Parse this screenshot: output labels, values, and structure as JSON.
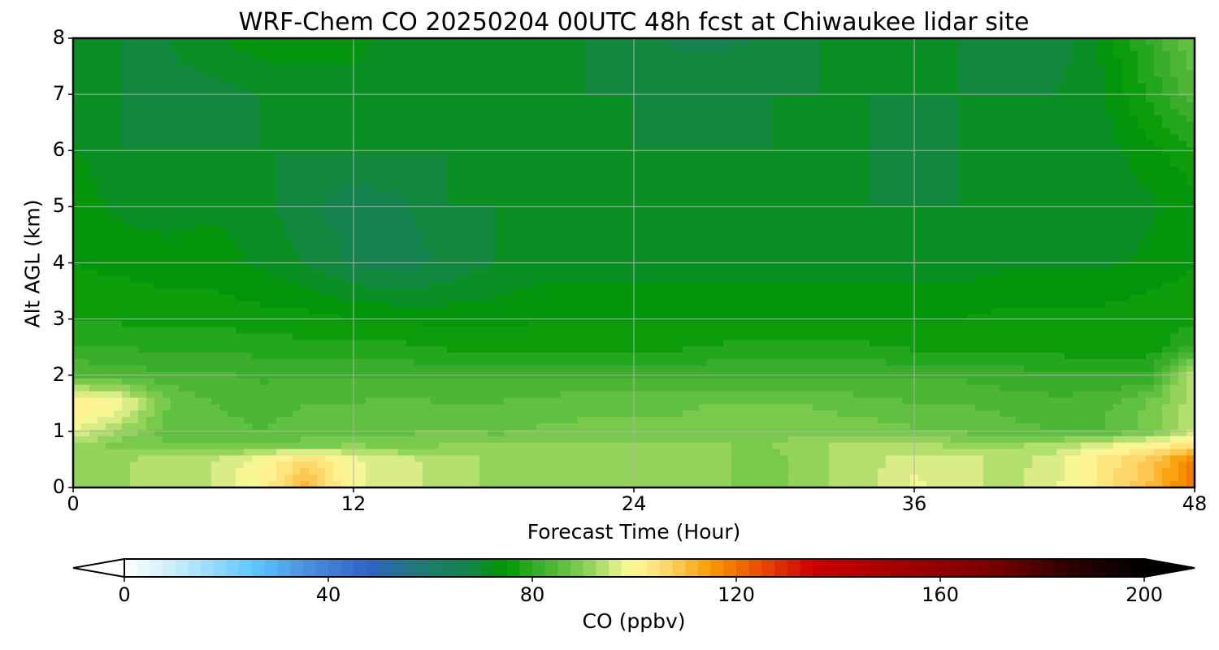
{
  "chart_data": {
    "type": "heatmap",
    "title": "WRF-Chem CO  20250204 00UTC 48h fcst at Chiwaukee lidar site",
    "xlabel": "Forecast Time (Hour)",
    "ylabel": "Alt AGL (km)",
    "xlim": [
      0,
      48
    ],
    "ylim": [
      0,
      8
    ],
    "xticks": [
      "0",
      "12",
      "24",
      "36",
      "48"
    ],
    "xtick_values": [
      0,
      12,
      24,
      36,
      48
    ],
    "yticks": [
      "0",
      "1",
      "2",
      "3",
      "4",
      "5",
      "6",
      "7",
      "8"
    ],
    "ytick_values": [
      0,
      1,
      2,
      3,
      4,
      5,
      6,
      7,
      8
    ],
    "grid": true,
    "x": [
      0,
      2,
      4,
      6,
      8,
      10,
      12,
      14,
      16,
      18,
      20,
      22,
      24,
      26,
      28,
      30,
      32,
      34,
      36,
      38,
      40,
      42,
      44,
      46,
      48
    ],
    "y": [
      0,
      0.5,
      0.75,
      1,
      1.5,
      2,
      2.5,
      3,
      3.5,
      4,
      5,
      6,
      7,
      8
    ],
    "z": [
      [
        92,
        92,
        94,
        95,
        100,
        112,
        98,
        96,
        94,
        92,
        92,
        91,
        91,
        90,
        90,
        89,
        92,
        94,
        98,
        96,
        94,
        97,
        103,
        110,
        120
      ],
      [
        92,
        92,
        94,
        95,
        99,
        106,
        98,
        96,
        94,
        92,
        92,
        91,
        91,
        90,
        90,
        89,
        92,
        94,
        97,
        96,
        94,
        96,
        103,
        108,
        118
      ],
      [
        92,
        89,
        88,
        88,
        88,
        89,
        90,
        89,
        90,
        90,
        90,
        90,
        90,
        90,
        90,
        90,
        92,
        95,
        93,
        92,
        92,
        93,
        96,
        100,
        105
      ],
      [
        98,
        92,
        86,
        86,
        85,
        86,
        87,
        87,
        88,
        87,
        88,
        88,
        88,
        88,
        89,
        89,
        89,
        89,
        88,
        87,
        86,
        85,
        85,
        88,
        95
      ],
      [
        103,
        100,
        88,
        85,
        84,
        85,
        85,
        86,
        85,
        85,
        86,
        87,
        87,
        87,
        88,
        88,
        87,
        86,
        85,
        85,
        84,
        83,
        84,
        88,
        94
      ],
      [
        85,
        84,
        83,
        83,
        82,
        82,
        82,
        82,
        82,
        82,
        82,
        82,
        82,
        82,
        82,
        82,
        82,
        82,
        82,
        82,
        81,
        81,
        80,
        80,
        96
      ],
      [
        80,
        80,
        79,
        79,
        79,
        78,
        78,
        78,
        77,
        77,
        76,
        77,
        77,
        77,
        78,
        78,
        78,
        78,
        77,
        77,
        77,
        76,
        76,
        76,
        80
      ],
      [
        77,
        77,
        77,
        77,
        76,
        76,
        75,
        75,
        74,
        74,
        75,
        75,
        75,
        75,
        75,
        75,
        75,
        75,
        75,
        75,
        76,
        76,
        76,
        76,
        77
      ],
      [
        76,
        76,
        75,
        75,
        74,
        73,
        71,
        70,
        71,
        72,
        73,
        73,
        73,
        73,
        73,
        73,
        73,
        73,
        73,
        73,
        74,
        74,
        74,
        75,
        76
      ],
      [
        75,
        74,
        74,
        74,
        72,
        70,
        67,
        66,
        68,
        70,
        71,
        71,
        71,
        71,
        71,
        71,
        71,
        71,
        71,
        71,
        72,
        72,
        72,
        73,
        75
      ],
      [
        74,
        72,
        71,
        72,
        71,
        68,
        66,
        67,
        70,
        70,
        70,
        70,
        70,
        70,
        70,
        70,
        70,
        70,
        70,
        70,
        70,
        70,
        70,
        72,
        74
      ],
      [
        73,
        70,
        70,
        70,
        70,
        70,
        70,
        70,
        70,
        70,
        70,
        70,
        70,
        70,
        70,
        70,
        70,
        70,
        69,
        70,
        70,
        70,
        71,
        74,
        77
      ],
      [
        70,
        70,
        69,
        69,
        70,
        71,
        72,
        71,
        70,
        70,
        70,
        70,
        70,
        69,
        69,
        70,
        70,
        70,
        70,
        70,
        70,
        70,
        72,
        78,
        84
      ],
      [
        72,
        70,
        70,
        72,
        74,
        74,
        73,
        72,
        71,
        70,
        70,
        70,
        68,
        67,
        67,
        68,
        70,
        70,
        70,
        70,
        68,
        68,
        73,
        80,
        88
      ]
    ],
    "z_units": "ppbv",
    "colorbar": {
      "label": "CO  (ppbv)",
      "min": 0,
      "max": 200,
      "step": 2.5,
      "extend": "both",
      "ticks": [
        "0",
        "40",
        "80",
        "120",
        "160",
        "200"
      ],
      "tick_values": [
        0,
        40,
        80,
        120,
        160,
        200
      ],
      "cmap_anchors": [
        [
          0,
          "#ffffff"
        ],
        [
          10,
          "#c8ecfc"
        ],
        [
          25,
          "#5fc8ff"
        ],
        [
          35,
          "#4c94e0"
        ],
        [
          47.5,
          "#3062c8"
        ],
        [
          57.5,
          "#1f7a78"
        ],
        [
          67.5,
          "#14844a"
        ],
        [
          75,
          "#009900"
        ],
        [
          80,
          "#30aa26"
        ],
        [
          87.5,
          "#6ac444"
        ],
        [
          92.5,
          "#a0d864"
        ],
        [
          97.5,
          "#ecf290"
        ],
        [
          100,
          "#fff999"
        ],
        [
          107.5,
          "#fdd060"
        ],
        [
          115,
          "#f99a00"
        ],
        [
          125,
          "#e84a00"
        ],
        [
          135,
          "#cc0000"
        ],
        [
          150,
          "#a80000"
        ],
        [
          170,
          "#7a0000"
        ],
        [
          185,
          "#300000"
        ],
        [
          200,
          "#000000"
        ]
      ]
    }
  }
}
